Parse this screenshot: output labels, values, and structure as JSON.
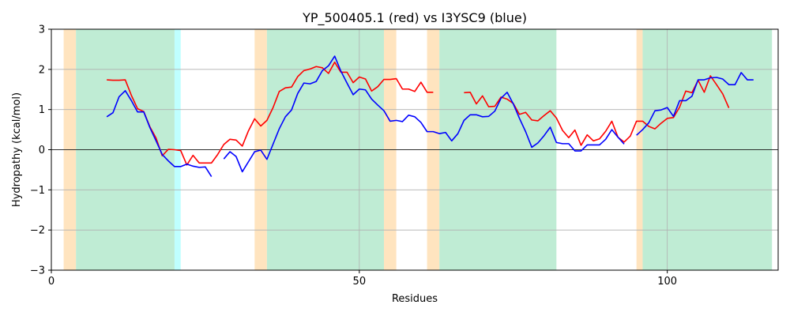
{
  "chart_data": {
    "type": "line",
    "title": "YP_500405.1 (red) vs I3YSC9 (blue)",
    "xlabel": "Residues",
    "ylabel": "Hydropathy (kcal/mol)",
    "xlim": [
      0,
      118
    ],
    "ylim": [
      -3,
      3
    ],
    "xticks": [
      0,
      50,
      100
    ],
    "yticks": [
      -3,
      -2,
      -1,
      0,
      1,
      2,
      3
    ],
    "grid": true,
    "zero_line": true,
    "colors": {
      "red_series": "#ff0000",
      "blue_series": "#0000ff",
      "orange_region": "#ffe4bf",
      "green_region": "#bfecd4",
      "cyan_region": "#bfffff"
    },
    "regions": [
      {
        "x0": 2,
        "x1": 4,
        "color": "orange"
      },
      {
        "x0": 4,
        "x1": 20,
        "color": "green"
      },
      {
        "x0": 20,
        "x1": 21,
        "color": "cyan"
      },
      {
        "x0": 33,
        "x1": 35,
        "color": "orange"
      },
      {
        "x0": 35,
        "x1": 54,
        "color": "green"
      },
      {
        "x0": 54,
        "x1": 56,
        "color": "orange"
      },
      {
        "x0": 61,
        "x1": 63,
        "color": "orange"
      },
      {
        "x0": 63,
        "x1": 82,
        "color": "green"
      },
      {
        "x0": 95,
        "x1": 96,
        "color": "orange"
      },
      {
        "x0": 96,
        "x1": 117,
        "color": "green"
      }
    ],
    "series": [
      {
        "color": "red",
        "segments": [
          [
            [
              9,
              1.74
            ],
            [
              10,
              1.73
            ],
            [
              11,
              1.73
            ],
            [
              12,
              1.74
            ],
            [
              13,
              1.35
            ],
            [
              14,
              1.02
            ],
            [
              15,
              0.95
            ],
            [
              16,
              0.57
            ],
            [
              17,
              0.29
            ],
            [
              18,
              -0.15
            ],
            [
              19,
              0.01
            ],
            [
              20,
              0.0
            ],
            [
              21,
              -0.02
            ],
            [
              22,
              -0.38
            ],
            [
              23,
              -0.14
            ],
            [
              24,
              -0.33
            ],
            [
              25,
              -0.33
            ],
            [
              26,
              -0.33
            ],
            [
              27,
              -0.12
            ],
            [
              28,
              0.13
            ],
            [
              29,
              0.26
            ],
            [
              30,
              0.24
            ],
            [
              31,
              0.09
            ],
            [
              32,
              0.47
            ],
            [
              33,
              0.77
            ],
            [
              34,
              0.59
            ],
            [
              35,
              0.73
            ],
            [
              36,
              1.05
            ],
            [
              37,
              1.45
            ],
            [
              38,
              1.54
            ],
            [
              39,
              1.56
            ],
            [
              40,
              1.82
            ],
            [
              41,
              1.97
            ],
            [
              42,
              2.01
            ],
            [
              43,
              2.07
            ],
            [
              44,
              2.04
            ],
            [
              45,
              1.9
            ],
            [
              46,
              2.18
            ],
            [
              47,
              1.93
            ],
            [
              48,
              1.93
            ],
            [
              49,
              1.67
            ],
            [
              50,
              1.81
            ],
            [
              51,
              1.76
            ],
            [
              52,
              1.46
            ],
            [
              53,
              1.57
            ],
            [
              54,
              1.75
            ],
            [
              55,
              1.75
            ],
            [
              56,
              1.77
            ],
            [
              57,
              1.51
            ],
            [
              58,
              1.51
            ],
            [
              59,
              1.45
            ],
            [
              60,
              1.68
            ],
            [
              61,
              1.43
            ],
            [
              62,
              1.43
            ]
          ],
          [
            [
              67,
              1.42
            ],
            [
              68,
              1.43
            ],
            [
              69,
              1.14
            ],
            [
              70,
              1.34
            ],
            [
              71,
              1.07
            ],
            [
              72,
              1.08
            ],
            [
              73,
              1.31
            ],
            [
              74,
              1.26
            ],
            [
              75,
              1.15
            ],
            [
              76,
              0.88
            ],
            [
              77,
              0.93
            ],
            [
              78,
              0.74
            ],
            [
              79,
              0.72
            ],
            [
              80,
              0.85
            ],
            [
              81,
              0.97
            ],
            [
              82,
              0.79
            ],
            [
              83,
              0.48
            ],
            [
              84,
              0.3
            ],
            [
              85,
              0.49
            ],
            [
              86,
              0.11
            ],
            [
              87,
              0.37
            ],
            [
              88,
              0.22
            ],
            [
              89,
              0.27
            ],
            [
              90,
              0.46
            ],
            [
              91,
              0.71
            ],
            [
              92,
              0.31
            ],
            [
              93,
              0.19
            ],
            [
              94,
              0.34
            ],
            [
              95,
              0.71
            ],
            [
              96,
              0.71
            ],
            [
              97,
              0.58
            ],
            [
              98,
              0.52
            ],
            [
              99,
              0.66
            ],
            [
              100,
              0.78
            ],
            [
              101,
              0.8
            ],
            [
              102,
              1.06
            ],
            [
              103,
              1.46
            ],
            [
              104,
              1.42
            ],
            [
              105,
              1.73
            ],
            [
              106,
              1.43
            ],
            [
              107,
              1.84
            ],
            [
              108,
              1.62
            ],
            [
              109,
              1.39
            ],
            [
              110,
              1.04
            ]
          ]
        ]
      },
      {
        "color": "blue",
        "segments": [
          [
            [
              9,
              0.82
            ],
            [
              10,
              0.92
            ],
            [
              11,
              1.32
            ],
            [
              12,
              1.47
            ],
            [
              13,
              1.22
            ],
            [
              14,
              0.94
            ],
            [
              15,
              0.94
            ],
            [
              16,
              0.55
            ],
            [
              17,
              0.22
            ],
            [
              18,
              -0.12
            ],
            [
              19,
              -0.28
            ],
            [
              20,
              -0.42
            ],
            [
              21,
              -0.42
            ],
            [
              22,
              -0.36
            ],
            [
              23,
              -0.41
            ],
            [
              24,
              -0.44
            ],
            [
              25,
              -0.43
            ],
            [
              26,
              -0.67
            ]
          ],
          [
            [
              28,
              -0.23
            ],
            [
              29,
              -0.05
            ],
            [
              30,
              -0.17
            ],
            [
              31,
              -0.55
            ],
            [
              32,
              -0.3
            ],
            [
              33,
              -0.05
            ],
            [
              34,
              -0.01
            ],
            [
              35,
              -0.24
            ],
            [
              36,
              0.14
            ],
            [
              37,
              0.52
            ],
            [
              38,
              0.82
            ],
            [
              39,
              0.99
            ],
            [
              40,
              1.4
            ],
            [
              41,
              1.66
            ],
            [
              42,
              1.64
            ],
            [
              43,
              1.7
            ],
            [
              44,
              1.97
            ],
            [
              45,
              2.09
            ],
            [
              46,
              2.33
            ],
            [
              47,
              1.96
            ],
            [
              48,
              1.66
            ],
            [
              49,
              1.37
            ],
            [
              50,
              1.51
            ],
            [
              51,
              1.49
            ],
            [
              52,
              1.26
            ],
            [
              53,
              1.11
            ],
            [
              54,
              0.97
            ],
            [
              55,
              0.71
            ],
            [
              56,
              0.73
            ],
            [
              57,
              0.7
            ],
            [
              58,
              0.86
            ],
            [
              59,
              0.82
            ],
            [
              60,
              0.68
            ],
            [
              61,
              0.45
            ],
            [
              62,
              0.45
            ],
            [
              63,
              0.4
            ],
            [
              64,
              0.43
            ],
            [
              65,
              0.22
            ],
            [
              66,
              0.4
            ],
            [
              67,
              0.73
            ],
            [
              68,
              0.87
            ],
            [
              69,
              0.87
            ],
            [
              70,
              0.82
            ],
            [
              71,
              0.83
            ],
            [
              72,
              0.96
            ],
            [
              73,
              1.28
            ],
            [
              74,
              1.43
            ],
            [
              75,
              1.14
            ],
            [
              76,
              0.78
            ],
            [
              77,
              0.45
            ],
            [
              78,
              0.06
            ],
            [
              79,
              0.17
            ],
            [
              80,
              0.35
            ],
            [
              81,
              0.56
            ],
            [
              82,
              0.18
            ],
            [
              83,
              0.15
            ],
            [
              84,
              0.15
            ],
            [
              85,
              -0.03
            ],
            [
              86,
              -0.03
            ],
            [
              87,
              0.12
            ],
            [
              88,
              0.12
            ],
            [
              89,
              0.12
            ],
            [
              90,
              0.26
            ],
            [
              91,
              0.5
            ],
            [
              92,
              0.31
            ],
            [
              93,
              0.14
            ]
          ],
          [
            [
              95,
              0.36
            ],
            [
              96,
              0.5
            ],
            [
              97,
              0.67
            ],
            [
              98,
              0.97
            ],
            [
              99,
              0.99
            ],
            [
              100,
              1.05
            ],
            [
              101,
              0.83
            ],
            [
              102,
              1.22
            ],
            [
              103,
              1.22
            ],
            [
              104,
              1.33
            ],
            [
              105,
              1.74
            ],
            [
              106,
              1.74
            ],
            [
              107,
              1.79
            ],
            [
              108,
              1.8
            ],
            [
              109,
              1.76
            ],
            [
              110,
              1.62
            ],
            [
              111,
              1.62
            ],
            [
              112,
              1.92
            ],
            [
              113,
              1.74
            ],
            [
              114,
              1.74
            ]
          ]
        ]
      }
    ]
  }
}
